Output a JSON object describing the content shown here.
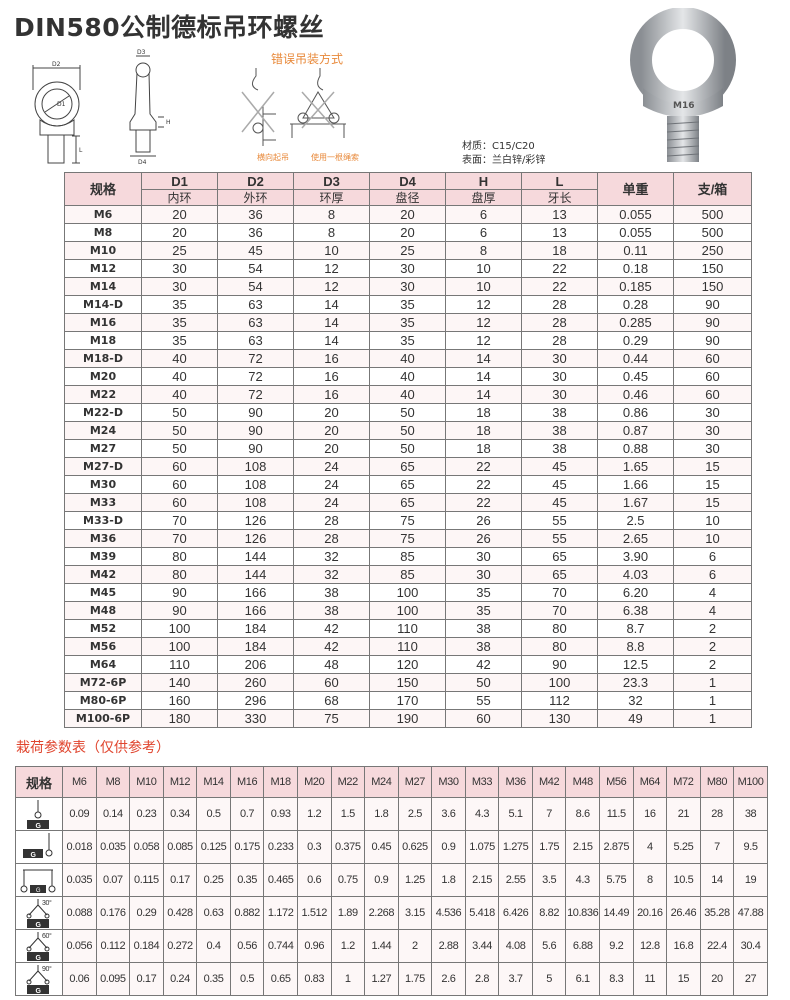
{
  "title": "DIN580公制德标吊环螺丝",
  "diagram": {
    "labels": {
      "d1": "D1",
      "d2": "D2",
      "d3": "D3",
      "d4": "D4",
      "h": "H",
      "l": "L"
    }
  },
  "wrong_lifting": {
    "title": "错误吊装方式",
    "captions": [
      "横向起吊",
      "使用一根绳索"
    ]
  },
  "material": {
    "line1": "材质：C15/C20",
    "line2": "表面：兰白锌/彩锌"
  },
  "photo_marking": "M16",
  "colors": {
    "header_bg": "#f6d9dc",
    "accent_red": "#e0452e",
    "accent_orange": "#e8893a"
  },
  "spec_table": {
    "headers": [
      "规格",
      "D1",
      "D2",
      "D3",
      "D4",
      "H",
      "L",
      "单重",
      "支/箱"
    ],
    "subheaders": [
      "内环",
      "外环",
      "环厚",
      "盘径",
      "盘厚",
      "牙长"
    ],
    "rows": [
      [
        "M6",
        "20",
        "36",
        "8",
        "20",
        "6",
        "13",
        "0.055",
        "500"
      ],
      [
        "M8",
        "20",
        "36",
        "8",
        "20",
        "6",
        "13",
        "0.055",
        "500"
      ],
      [
        "M10",
        "25",
        "45",
        "10",
        "25",
        "8",
        "18",
        "0.11",
        "250"
      ],
      [
        "M12",
        "30",
        "54",
        "12",
        "30",
        "10",
        "22",
        "0.18",
        "150"
      ],
      [
        "M14",
        "30",
        "54",
        "12",
        "30",
        "10",
        "22",
        "0.185",
        "150"
      ],
      [
        "M14-D",
        "35",
        "63",
        "14",
        "35",
        "12",
        "28",
        "0.28",
        "90"
      ],
      [
        "M16",
        "35",
        "63",
        "14",
        "35",
        "12",
        "28",
        "0.285",
        "90"
      ],
      [
        "M18",
        "35",
        "63",
        "14",
        "35",
        "12",
        "28",
        "0.29",
        "90"
      ],
      [
        "M18-D",
        "40",
        "72",
        "16",
        "40",
        "14",
        "30",
        "0.44",
        "60"
      ],
      [
        "M20",
        "40",
        "72",
        "16",
        "40",
        "14",
        "30",
        "0.45",
        "60"
      ],
      [
        "M22",
        "40",
        "72",
        "16",
        "40",
        "14",
        "30",
        "0.46",
        "60"
      ],
      [
        "M22-D",
        "50",
        "90",
        "20",
        "50",
        "18",
        "38",
        "0.86",
        "30"
      ],
      [
        "M24",
        "50",
        "90",
        "20",
        "50",
        "18",
        "38",
        "0.87",
        "30"
      ],
      [
        "M27",
        "50",
        "90",
        "20",
        "50",
        "18",
        "38",
        "0.88",
        "30"
      ],
      [
        "M27-D",
        "60",
        "108",
        "24",
        "65",
        "22",
        "45",
        "1.65",
        "15"
      ],
      [
        "M30",
        "60",
        "108",
        "24",
        "65",
        "22",
        "45",
        "1.66",
        "15"
      ],
      [
        "M33",
        "60",
        "108",
        "24",
        "65",
        "22",
        "45",
        "1.67",
        "15"
      ],
      [
        "M33-D",
        "70",
        "126",
        "28",
        "75",
        "26",
        "55",
        "2.5",
        "10"
      ],
      [
        "M36",
        "70",
        "126",
        "28",
        "75",
        "26",
        "55",
        "2.65",
        "10"
      ],
      [
        "M39",
        "80",
        "144",
        "32",
        "85",
        "30",
        "65",
        "3.90",
        "6"
      ],
      [
        "M42",
        "80",
        "144",
        "32",
        "85",
        "30",
        "65",
        "4.03",
        "6"
      ],
      [
        "M45",
        "90",
        "166",
        "38",
        "100",
        "35",
        "70",
        "6.20",
        "4"
      ],
      [
        "M48",
        "90",
        "166",
        "38",
        "100",
        "35",
        "70",
        "6.38",
        "4"
      ],
      [
        "M52",
        "100",
        "184",
        "42",
        "110",
        "38",
        "80",
        "8.7",
        "2"
      ],
      [
        "M56",
        "100",
        "184",
        "42",
        "110",
        "38",
        "80",
        "8.8",
        "2"
      ],
      [
        "M64",
        "110",
        "206",
        "48",
        "120",
        "42",
        "90",
        "12.5",
        "2"
      ],
      [
        "M72-6P",
        "140",
        "260",
        "60",
        "150",
        "50",
        "100",
        "23.3",
        "1"
      ],
      [
        "M80-6P",
        "160",
        "296",
        "68",
        "170",
        "55",
        "112",
        "32",
        "1"
      ],
      [
        "M100-6P",
        "180",
        "330",
        "75",
        "190",
        "60",
        "130",
        "49",
        "1"
      ]
    ]
  },
  "load_table": {
    "title": "栽荷参数表（仅供参考）",
    "header_label": "规格",
    "sizes": [
      "M6",
      "M8",
      "M10",
      "M12",
      "M14",
      "M16",
      "M18",
      "M20",
      "M22",
      "M24",
      "M27",
      "M30",
      "M33",
      "M36",
      "M42",
      "M48",
      "M56",
      "M64",
      "M72",
      "M80",
      "M100"
    ],
    "rows": [
      {
        "icon": "vertical-lift",
        "angle": "",
        "weight_label": "G",
        "values": [
          "0.09",
          "0.14",
          "0.23",
          "0.34",
          "0.5",
          "0.7",
          "0.93",
          "1.2",
          "1.5",
          "1.8",
          "2.5",
          "3.6",
          "4.3",
          "5.1",
          "7",
          "8.6",
          "11.5",
          "16",
          "21",
          "28",
          "38"
        ]
      },
      {
        "icon": "side-lift",
        "angle": "",
        "weight_label": "G",
        "values": [
          "0.018",
          "0.035",
          "0.058",
          "0.085",
          "0.125",
          "0.175",
          "0.233",
          "0.3",
          "0.375",
          "0.45",
          "0.625",
          "0.9",
          "1.075",
          "1.275",
          "1.75",
          "2.15",
          "2.875",
          "4",
          "5.25",
          "7",
          "9.5"
        ]
      },
      {
        "icon": "beam-lift",
        "angle": "",
        "weight_label": "G",
        "values": [
          "0.035",
          "0.07",
          "0.115",
          "0.17",
          "0.25",
          "0.35",
          "0.465",
          "0.6",
          "0.75",
          "0.9",
          "1.25",
          "1.8",
          "2.15",
          "2.55",
          "3.5",
          "4.3",
          "5.75",
          "8",
          "10.5",
          "14",
          "19"
        ]
      },
      {
        "icon": "sling-30",
        "angle": "30°",
        "weight_label": "G",
        "values": [
          "0.088",
          "0.176",
          "0.29",
          "0.428",
          "0.63",
          "0.882",
          "1.172",
          "1.512",
          "1.89",
          "2.268",
          "3.15",
          "4.536",
          "5.418",
          "6.426",
          "8.82",
          "10.836",
          "14.49",
          "20.16",
          "26.46",
          "35.28",
          "47.88"
        ]
      },
      {
        "icon": "sling-60",
        "angle": "60°",
        "weight_label": "G",
        "values": [
          "0.056",
          "0.112",
          "0.184",
          "0.272",
          "0.4",
          "0.56",
          "0.744",
          "0.96",
          "1.2",
          "1.44",
          "2",
          "2.88",
          "3.44",
          "4.08",
          "5.6",
          "6.88",
          "9.2",
          "12.8",
          "16.8",
          "22.4",
          "30.4"
        ]
      },
      {
        "icon": "sling-90",
        "angle": "90°",
        "weight_label": "G",
        "values": [
          "0.06",
          "0.095",
          "0.17",
          "0.24",
          "0.35",
          "0.5",
          "0.65",
          "0.83",
          "1",
          "1.27",
          "1.75",
          "2.6",
          "2.8",
          "3.7",
          "5",
          "6.1",
          "8.3",
          "11",
          "15",
          "20",
          "27"
        ]
      }
    ]
  }
}
